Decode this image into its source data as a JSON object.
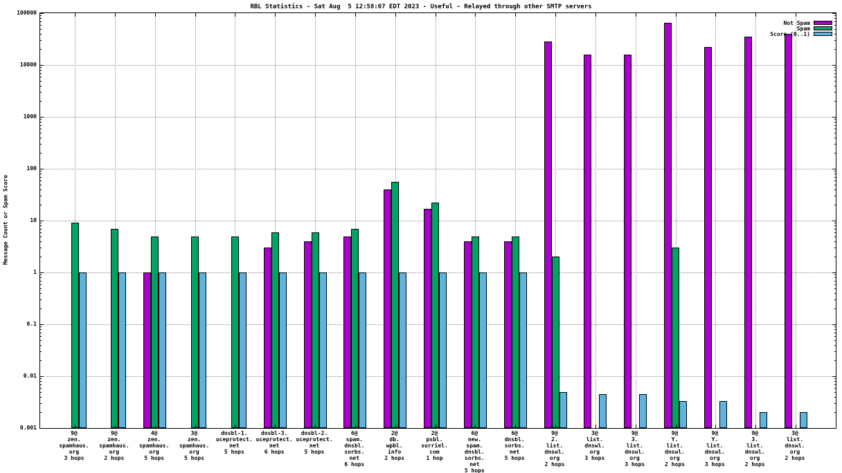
{
  "title": "RBL Statistics - Sat Aug  5 12:58:07 EDT 2023 - Useful - Relayed through other SMTP servers",
  "ylabel": "Message Count or Spam Score",
  "chart_data": {
    "type": "bar",
    "y_scale": "log",
    "ylim": [
      0.001,
      100000
    ],
    "y_ticks": [
      "0.001",
      "0.01",
      "0.1",
      "1",
      "10",
      "100",
      "1000",
      "10000",
      "100000"
    ],
    "grid": true,
    "legend_position": "top-right-inside",
    "categories": [
      [
        "9@",
        "zen.",
        "spamhaus.",
        "org",
        "3 hops"
      ],
      [
        "9@",
        "zen.",
        "spamhaus.",
        "org",
        "2 hops"
      ],
      [
        "4@",
        "zen.",
        "spamhaus.",
        "org",
        "5 hops"
      ],
      [
        "3@",
        "zen.",
        "spamhaus.",
        "org",
        "5 hops"
      ],
      [
        "dnsbl-1.",
        "uceprotect.",
        "net",
        "5 hops"
      ],
      [
        "dnsbl-3.",
        "uceprotect.",
        "net",
        "6 hops"
      ],
      [
        "dnsbl-2.",
        "uceprotect.",
        "net",
        "5 hops"
      ],
      [
        "6@",
        "spam.",
        "dnsbl.",
        "sorbs.",
        "net",
        "6 hops"
      ],
      [
        "2@",
        "db.",
        "wpbl.",
        "info",
        "2 hops"
      ],
      [
        "2@",
        "psbl.",
        "surriel.",
        "com",
        "1 hop"
      ],
      [
        "6@",
        "new.",
        "spam.",
        "dnsbl.",
        "sorbs.",
        "net",
        "5 hops"
      ],
      [
        "6@",
        "dnsbl.",
        "sorbs.",
        "net",
        "5 hops"
      ],
      [
        "9@",
        "2.",
        "list.",
        "dnswl.",
        "org",
        "2 hops"
      ],
      [
        "3@",
        "list.",
        "dnswl.",
        "org",
        "3 hops"
      ],
      [
        "9@",
        "3.",
        "list.",
        "dnswl.",
        "org",
        "3 hops"
      ],
      [
        "9@",
        "Y.",
        "list.",
        "dnswl.",
        "org",
        "2 hops"
      ],
      [
        "9@",
        "Y.",
        "list.",
        "dnswl.",
        "org",
        "3 hops"
      ],
      [
        "9@",
        "3.",
        "list.",
        "dnswl.",
        "org",
        "2 hops"
      ],
      [
        "3@",
        "list.",
        "dnswl.",
        "org",
        "2 hops"
      ]
    ],
    "series": [
      {
        "name": "Not Spam",
        "color": "#aa00cc",
        "values": [
          null,
          null,
          1,
          null,
          null,
          3,
          4,
          5,
          40,
          17,
          4,
          4,
          28000,
          16000,
          16000,
          65000,
          22000,
          35000,
          40000
        ]
      },
      {
        "name": "Spam",
        "color": "#00a366",
        "values": [
          9,
          7,
          5,
          5,
          5,
          6,
          6,
          7,
          55,
          22,
          5,
          5,
          2,
          null,
          null,
          3,
          null,
          null,
          null
        ]
      },
      {
        "name": "Score (0..1)",
        "color": "#5fb3de",
        "values": [
          1,
          1,
          1,
          1,
          1,
          1,
          1,
          1,
          1,
          1,
          1,
          1,
          0.005,
          0.0045,
          0.0045,
          0.0033,
          0.0033,
          0.002,
          0.002
        ]
      }
    ]
  }
}
